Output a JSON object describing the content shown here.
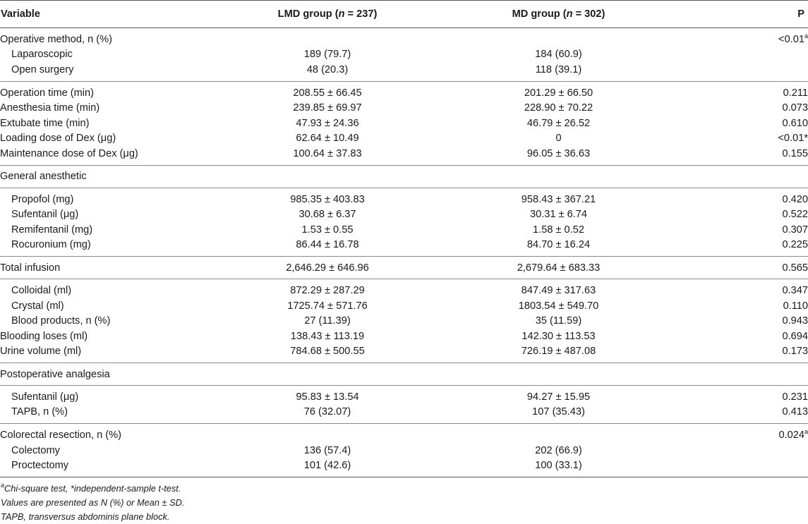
{
  "header": {
    "variable": "Variable",
    "lmd_prefix": "LMD group (",
    "lmd_n": "n",
    "lmd_suffix": " = 237)",
    "md_prefix": "MD group (",
    "md_n": "n",
    "md_suffix": " = 302)",
    "p": "P"
  },
  "rows": {
    "op_method": {
      "label": "Operative method, n (%)",
      "lmd": "",
      "md": "",
      "p": "<0.01",
      "p_sup": "a"
    },
    "laparoscopic": {
      "label": "Laparoscopic",
      "lmd": "189 (79.7)",
      "md": "184 (60.9)",
      "p": ""
    },
    "open_surgery": {
      "label": "Open surgery",
      "lmd": "48 (20.3)",
      "md": "118 (39.1)",
      "p": ""
    },
    "operation_time": {
      "label": "Operation time (min)",
      "lmd": "208.55 ± 66.45",
      "md": "201.29 ± 66.50",
      "p": "0.211"
    },
    "anesthesia_time": {
      "label": "Anesthesia time (min)",
      "lmd": "239.85 ± 69.97",
      "md": "228.90 ± 70.22",
      "p": "0.073"
    },
    "extubate_time": {
      "label": "Extubate time (min)",
      "lmd": "47.93 ± 24.36",
      "md": "46.79 ± 26.52",
      "p": "0.610"
    },
    "loading_dose": {
      "label": "Loading dose of Dex (μg)",
      "lmd": "62.64 ± 10.49",
      "md": "0",
      "p": "<0.01*"
    },
    "maintenance_dose": {
      "label": "Maintenance dose of Dex (μg)",
      "lmd": "100.64 ± 37.83",
      "md": "96.05 ± 36.63",
      "p": "0.155"
    },
    "general_anesthetic": {
      "label": "General anesthetic"
    },
    "propofol": {
      "label": "Propofol (mg)",
      "lmd": "985.35 ± 403.83",
      "md": "958.43 ± 367.21",
      "p": "0.420"
    },
    "sufentanil_ga": {
      "label": "Sufentanil (μg)",
      "lmd": "30.68 ± 6.37",
      "md": "30.31 ± 6.74",
      "p": "0.522"
    },
    "remifentanil": {
      "label": "Remifentanil (mg)",
      "lmd": "1.53 ± 0.55",
      "md": "1.58 ± 0.52",
      "p": "0.307"
    },
    "rocuronium": {
      "label": "Rocuronium (mg)",
      "lmd": "86.44 ± 16.78",
      "md": "84.70 ± 16.24",
      "p": "0.225"
    },
    "total_infusion": {
      "label": "Total infusion",
      "lmd": "2,646.29 ± 646.96",
      "md": "2,679.64 ± 683.33",
      "p": "0.565"
    },
    "colloidal": {
      "label": "Colloidal (ml)",
      "lmd": "872.29 ± 287.29",
      "md": "847.49 ± 317.63",
      "p": "0.347"
    },
    "crystal": {
      "label": "Crystal (ml)",
      "lmd": "1725.74 ± 571.76",
      "md": "1803.54 ± 549.70",
      "p": "0.110"
    },
    "blood_products": {
      "label": "Blood products, n (%)",
      "lmd": "27 (11.39)",
      "md": "35 (11.59)",
      "p": "0.943"
    },
    "blooding_loses": {
      "label": "Blooding loses (ml)",
      "lmd": "138.43 ± 113.19",
      "md": "142.30 ± 113.53",
      "p": "0.694"
    },
    "urine_volume": {
      "label": "Urine volume (ml)",
      "lmd": "784.68 ± 500.55",
      "md": "726.19 ± 487.08",
      "p": "0.173"
    },
    "postop_analgesia": {
      "label": "Postoperative analgesia"
    },
    "sufentanil_pa": {
      "label": "Sufentanil (μg)",
      "lmd": "95.83 ± 13.54",
      "md": "94.27 ± 15.95",
      "p": "0.231"
    },
    "tapb": {
      "label": "TAPB, n (%)",
      "lmd": "76 (32.07)",
      "md": "107 (35.43)",
      "p": "0.413"
    },
    "colorectal": {
      "label": "Colorectal resection, n (%)",
      "lmd": "",
      "md": "",
      "p": "0.024",
      "p_sup": "a"
    },
    "colectomy": {
      "label": "Colectomy",
      "lmd": "136 (57.4)",
      "md": "202 (66.9)",
      "p": ""
    },
    "proctectomy": {
      "label": "Proctectomy",
      "lmd": "101 (42.6)",
      "md": "100 (33.1)",
      "p": ""
    }
  },
  "footnotes": {
    "line1_sup": "a",
    "line1": "Chi-square test, *independent-sample t-test.",
    "line2": "Values are presented as N (%) or Mean ± SD.",
    "line3": "TAPB, transversus abdominis plane block."
  }
}
